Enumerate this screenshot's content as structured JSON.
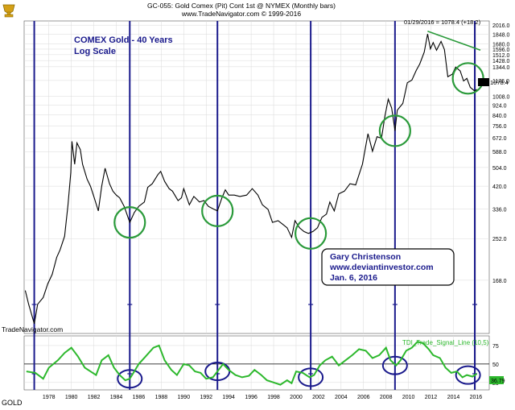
{
  "header": {
    "title": "GC-055:  Gold Comex (Pit) Cont 1st @ NYMEX  (Monthly bars)",
    "subtitle": "www.TradeNavigator.com © 1999-2016"
  },
  "watermark": "TradeNavigator.com",
  "symbol_label": "GOLD",
  "logo_icon": "trophy-logo-icon",
  "chart_data": [
    {
      "type": "line",
      "title": "COMEX Gold - 40 Years",
      "subtitle": "Log Scale",
      "scale": "log",
      "price_annotation": "01/29/2016 = 1078.4 (+18.2)",
      "last_price_label": "1078.4",
      "y_ticks": [
        "2016.0",
        "1848.0",
        "1680.0",
        "1596.0",
        "1512.0",
        "1428.0",
        "1344.0",
        "1176.0",
        "1008.0",
        "924.0",
        "840.0",
        "756.0",
        "672.0",
        "588.0",
        "504.0",
        "420.0",
        "336.0",
        "252.0",
        "168.0"
      ],
      "x_ticks": [
        "1978",
        "1980",
        "1982",
        "1984",
        "1986",
        "1988",
        "1990",
        "1992",
        "1994",
        "1996",
        "1998",
        "2000",
        "2002",
        "2004",
        "2006",
        "2008",
        "2010",
        "2012",
        "2014",
        "2016"
      ],
      "ylim": [
        100,
        2100
      ],
      "xlim": [
        1975.8,
        2016.4
      ],
      "grid": true,
      "cycle_lows_years": [
        1976.7,
        1985.2,
        1993.0,
        2001.3,
        2008.8,
        2015.9
      ],
      "highlight_circles_years": [
        1985.2,
        1993.0,
        2001.3,
        2008.8,
        2015.3
      ],
      "trendline": {
        "x": [
          2011.7,
          2016.4
        ],
        "y": [
          1900,
          1580
        ]
      },
      "series": [
        {
          "name": "Gold",
          "points": [
            [
              1975.9,
              152
            ],
            [
              1976.2,
              133
            ],
            [
              1976.7,
              110
            ],
            [
              1977.0,
              133
            ],
            [
              1977.5,
              142
            ],
            [
              1977.9,
              162
            ],
            [
              1978.3,
              178
            ],
            [
              1978.7,
              210
            ],
            [
              1979.0,
              226
            ],
            [
              1979.4,
              258
            ],
            [
              1979.7,
              350
            ],
            [
              1979.95,
              480
            ],
            [
              1980.05,
              650
            ],
            [
              1980.3,
              520
            ],
            [
              1980.5,
              640
            ],
            [
              1980.8,
              600
            ],
            [
              1981.0,
              520
            ],
            [
              1981.4,
              450
            ],
            [
              1981.7,
              420
            ],
            [
              1982.0,
              380
            ],
            [
              1982.4,
              330
            ],
            [
              1982.7,
              420
            ],
            [
              1983.0,
              500
            ],
            [
              1983.4,
              430
            ],
            [
              1983.7,
              400
            ],
            [
              1984.0,
              385
            ],
            [
              1984.3,
              375
            ],
            [
              1984.7,
              345
            ],
            [
              1985.2,
              295
            ],
            [
              1985.6,
              325
            ],
            [
              1986.0,
              345
            ],
            [
              1986.5,
              360
            ],
            [
              1986.8,
              415
            ],
            [
              1987.2,
              430
            ],
            [
              1987.7,
              470
            ],
            [
              1987.95,
              485
            ],
            [
              1988.3,
              440
            ],
            [
              1988.7,
              410
            ],
            [
              1989.0,
              400
            ],
            [
              1989.5,
              365
            ],
            [
              1989.8,
              375
            ],
            [
              1990.0,
              410
            ],
            [
              1990.5,
              350
            ],
            [
              1990.9,
              380
            ],
            [
              1991.4,
              360
            ],
            [
              1991.8,
              365
            ],
            [
              1992.2,
              345
            ],
            [
              1992.7,
              335
            ],
            [
              1993.0,
              330
            ],
            [
              1993.4,
              375
            ],
            [
              1993.7,
              405
            ],
            [
              1994.0,
              385
            ],
            [
              1994.5,
              385
            ],
            [
              1995.0,
              380
            ],
            [
              1995.6,
              385
            ],
            [
              1996.1,
              410
            ],
            [
              1996.6,
              385
            ],
            [
              1997.0,
              350
            ],
            [
              1997.5,
              335
            ],
            [
              1997.9,
              295
            ],
            [
              1998.4,
              300
            ],
            [
              1998.8,
              290
            ],
            [
              1999.2,
              280
            ],
            [
              1999.6,
              255
            ],
            [
              1999.9,
              300
            ],
            [
              2000.3,
              280
            ],
            [
              2000.7,
              270
            ],
            [
              2001.1,
              265
            ],
            [
              2001.5,
              270
            ],
            [
              2001.9,
              280
            ],
            [
              2002.3,
              310
            ],
            [
              2002.7,
              320
            ],
            [
              2003.0,
              360
            ],
            [
              2003.4,
              330
            ],
            [
              2003.8,
              390
            ],
            [
              2004.3,
              400
            ],
            [
              2004.8,
              430
            ],
            [
              2005.3,
              425
            ],
            [
              2005.9,
              520
            ],
            [
              2006.4,
              700
            ],
            [
              2006.8,
              590
            ],
            [
              2007.2,
              680
            ],
            [
              2007.6,
              670
            ],
            [
              2007.9,
              830
            ],
            [
              2008.2,
              980
            ],
            [
              2008.5,
              900
            ],
            [
              2008.8,
              720
            ],
            [
              2009.0,
              880
            ],
            [
              2009.5,
              940
            ],
            [
              2009.9,
              1150
            ],
            [
              2010.3,
              1180
            ],
            [
              2010.7,
              1300
            ],
            [
              2011.0,
              1380
            ],
            [
              2011.4,
              1550
            ],
            [
              2011.7,
              1850
            ],
            [
              2011.95,
              1600
            ],
            [
              2012.2,
              1700
            ],
            [
              2012.5,
              1580
            ],
            [
              2012.9,
              1720
            ],
            [
              2013.2,
              1590
            ],
            [
              2013.5,
              1220
            ],
            [
              2013.9,
              1250
            ],
            [
              2014.2,
              1340
            ],
            [
              2014.6,
              1290
            ],
            [
              2014.9,
              1170
            ],
            [
              2015.2,
              1200
            ],
            [
              2015.5,
              1100
            ],
            [
              2015.9,
              1060
            ],
            [
              2016.08,
              1078.4
            ]
          ]
        }
      ],
      "annotation_box": {
        "name": "Gary Christenson",
        "site": "www.deviantinvestor.com",
        "date": "Jan. 6, 2016"
      }
    },
    {
      "type": "line",
      "title": "TDI_Trade_Signal_Line (10,5)",
      "y_ticks": [
        "75",
        "50",
        "25"
      ],
      "ylim": [
        15,
        88
      ],
      "reference_line": 50,
      "last_value_label": "36.79",
      "series": [
        {
          "name": "TDI_Trade_Signal_Line (10,5)",
          "points": [
            [
              1976.0,
              40
            ],
            [
              1976.8,
              38
            ],
            [
              1977.5,
              30
            ],
            [
              1978.0,
              45
            ],
            [
              1978.8,
              55
            ],
            [
              1979.4,
              65
            ],
            [
              1980.0,
              72
            ],
            [
              1980.6,
              60
            ],
            [
              1981.2,
              45
            ],
            [
              1981.7,
              40
            ],
            [
              1982.2,
              35
            ],
            [
              1982.7,
              55
            ],
            [
              1983.3,
              62
            ],
            [
              1983.8,
              45
            ],
            [
              1984.3,
              35
            ],
            [
              1984.8,
              28
            ],
            [
              1985.2,
              30
            ],
            [
              1985.6,
              40
            ],
            [
              1986.0,
              50
            ],
            [
              1986.6,
              60
            ],
            [
              1987.3,
              72
            ],
            [
              1987.8,
              75
            ],
            [
              1988.3,
              55
            ],
            [
              1988.9,
              42
            ],
            [
              1989.4,
              35
            ],
            [
              1990.0,
              50
            ],
            [
              1990.5,
              48
            ],
            [
              1991.0,
              40
            ],
            [
              1991.5,
              38
            ],
            [
              1992.0,
              30
            ],
            [
              1992.6,
              32
            ],
            [
              1993.0,
              40
            ],
            [
              1993.5,
              50
            ],
            [
              1994.0,
              42
            ],
            [
              1994.6,
              35
            ],
            [
              1995.2,
              32
            ],
            [
              1995.8,
              34
            ],
            [
              1996.3,
              42
            ],
            [
              1996.9,
              35
            ],
            [
              1997.4,
              28
            ],
            [
              1998.0,
              25
            ],
            [
              1998.6,
              22
            ],
            [
              1999.2,
              28
            ],
            [
              1999.6,
              24
            ],
            [
              2000.0,
              40
            ],
            [
              2000.6,
              38
            ],
            [
              2001.2,
              32
            ],
            [
              2001.6,
              35
            ],
            [
              2002.1,
              48
            ],
            [
              2002.6,
              55
            ],
            [
              2003.2,
              60
            ],
            [
              2003.8,
              48
            ],
            [
              2004.4,
              55
            ],
            [
              2005.0,
              62
            ],
            [
              2005.6,
              70
            ],
            [
              2006.2,
              68
            ],
            [
              2006.8,
              58
            ],
            [
              2007.4,
              62
            ],
            [
              2008.0,
              72
            ],
            [
              2008.4,
              55
            ],
            [
              2008.9,
              48
            ],
            [
              2009.3,
              55
            ],
            [
              2009.8,
              68
            ],
            [
              2010.3,
              72
            ],
            [
              2010.8,
              80
            ],
            [
              2011.3,
              78
            ],
            [
              2011.8,
              70
            ],
            [
              2012.2,
              62
            ],
            [
              2012.8,
              58
            ],
            [
              2013.3,
              45
            ],
            [
              2013.8,
              38
            ],
            [
              2014.3,
              40
            ],
            [
              2014.8,
              32
            ],
            [
              2015.2,
              35
            ],
            [
              2015.7,
              33
            ],
            [
              2016.08,
              36.79
            ]
          ]
        }
      ]
    }
  ],
  "colors": {
    "price_line": "#000000",
    "cycle_line": "#1a1a8c",
    "circle_green": "#2a9a3a",
    "circle_blue": "#1a1a8c",
    "trend_green": "#2a9a3a",
    "indicator": "#2db82d",
    "grid": "#d9d9d9",
    "text_blue": "#1a1a8c"
  }
}
